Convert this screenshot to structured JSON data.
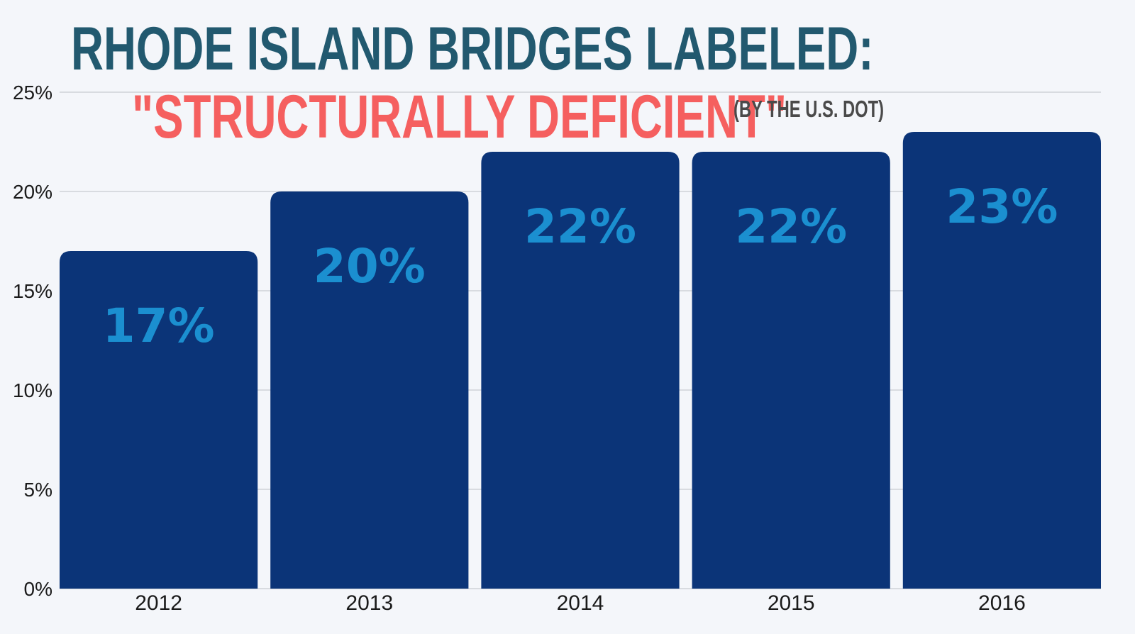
{
  "title": {
    "line1": "RHODE ISLAND BRIDGES LABELED:",
    "line2": "\"STRUCTURALLY DEFICIENT\"",
    "note": "(BY THE U.S. DOT)"
  },
  "chart_data": {
    "type": "bar",
    "categories": [
      "2012",
      "2013",
      "2014",
      "2015",
      "2016"
    ],
    "values": [
      17,
      20,
      22,
      22,
      23
    ],
    "data_labels": [
      "17%",
      "20%",
      "22%",
      "22%",
      "23%"
    ],
    "title": "RHODE ISLAND BRIDGES LABELED: \"STRUCTURALLY DEFICIENT\" (BY THE U.S. DOT)",
    "xlabel": "",
    "ylabel": "",
    "ylim": [
      0,
      25
    ],
    "yticks": [
      "0%",
      "5%",
      "10%",
      "15%",
      "20%",
      "25%"
    ],
    "grid": true,
    "legend": "none",
    "colors": {
      "bar": "#0b3478",
      "data_label": "#1b8fd0",
      "title1": "#22596f",
      "title2": "#f55f5f"
    }
  }
}
